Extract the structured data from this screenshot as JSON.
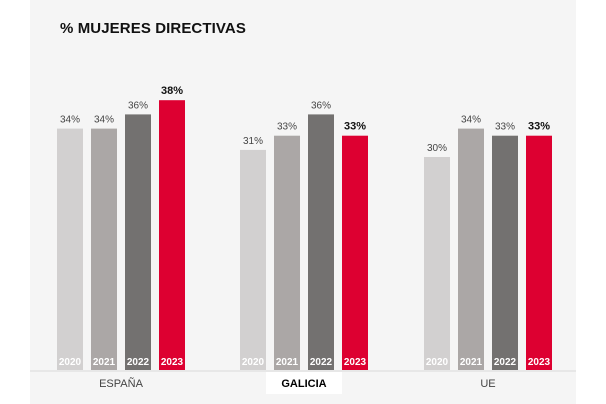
{
  "chart_data": {
    "type": "bar",
    "title": "% MUJERES DIRECTIVAS",
    "groups": [
      "ESPAÑA",
      "GALICIA",
      "UE"
    ],
    "highlight_group": "GALICIA",
    "years": [
      "2020",
      "2021",
      "2022",
      "2023"
    ],
    "series": [
      {
        "name": "2020",
        "values": [
          34,
          31,
          30
        ]
      },
      {
        "name": "2021",
        "values": [
          34,
          33,
          34
        ]
      },
      {
        "name": "2022",
        "values": [
          36,
          36,
          33
        ]
      },
      {
        "name": "2023",
        "values": [
          38,
          33,
          33
        ]
      }
    ],
    "value_suffix": "%",
    "bold_year": "2023",
    "colors": {
      "2020": "#d2d0d0",
      "2021": "#aba7a6",
      "2022": "#737170",
      "2023": "#dd0031"
    },
    "ylim": [
      0,
      38
    ],
    "grid": false,
    "legend": "none"
  }
}
